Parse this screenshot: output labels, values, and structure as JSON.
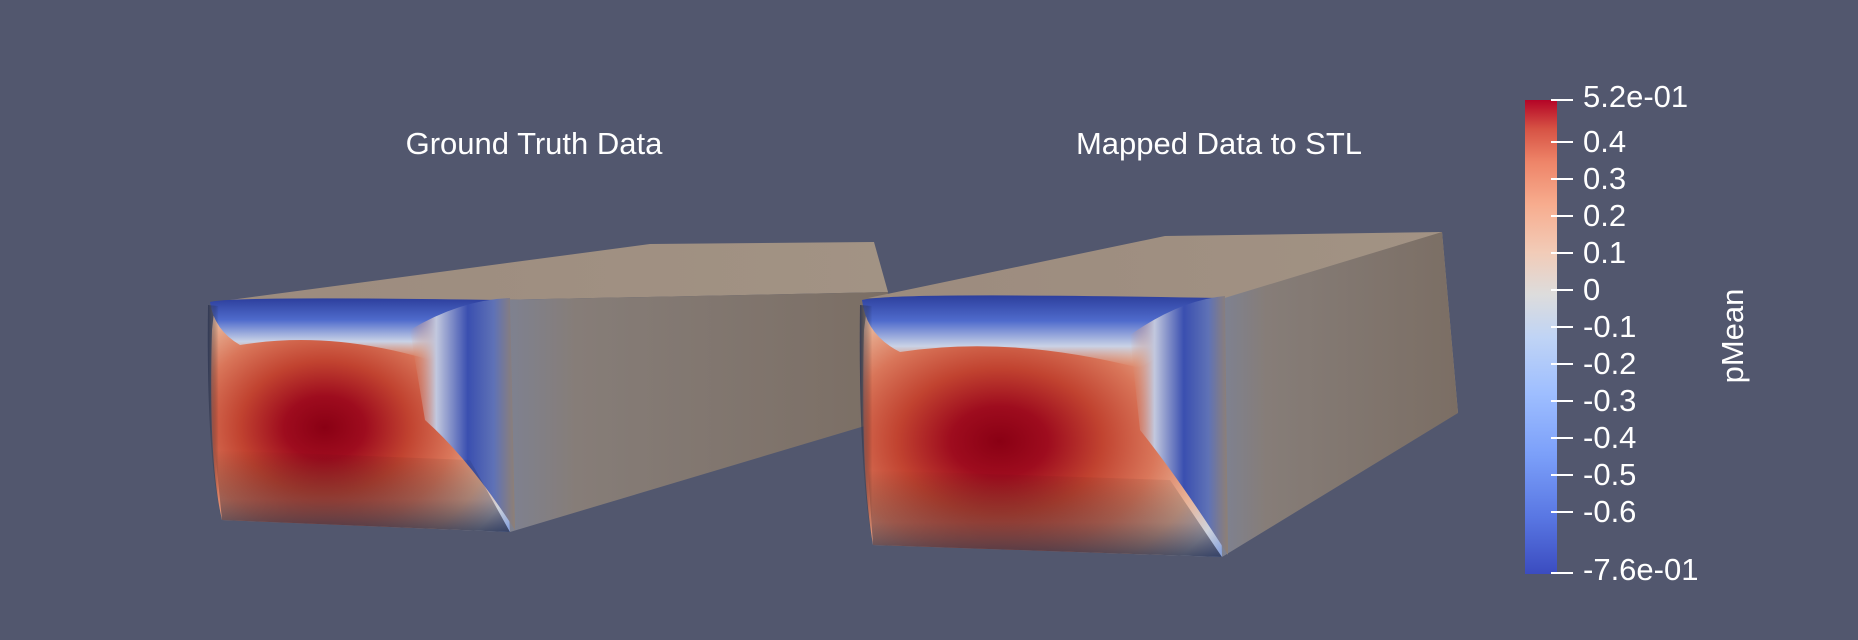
{
  "views": [
    {
      "title": "Ground Truth Data"
    },
    {
      "title": "Mapped Data to STL"
    }
  ],
  "colorbar": {
    "title": "pMean",
    "range": [
      -0.76,
      0.52
    ],
    "labels": [
      "5.2e-01",
      "0.4",
      "0.3",
      "0.2",
      "0.1",
      "0",
      "-0.1",
      "-0.2",
      "-0.3",
      "-0.4",
      "-0.5",
      "-0.6",
      "-7.6e-01"
    ],
    "colormap": "Cool to Warm",
    "colors": {
      "low": "#3b4cc0",
      "mid": "#dddddd",
      "high": "#b40426",
      "max": "#8b0016"
    }
  },
  "background": "#52576e",
  "surface_color": "#8f8074"
}
